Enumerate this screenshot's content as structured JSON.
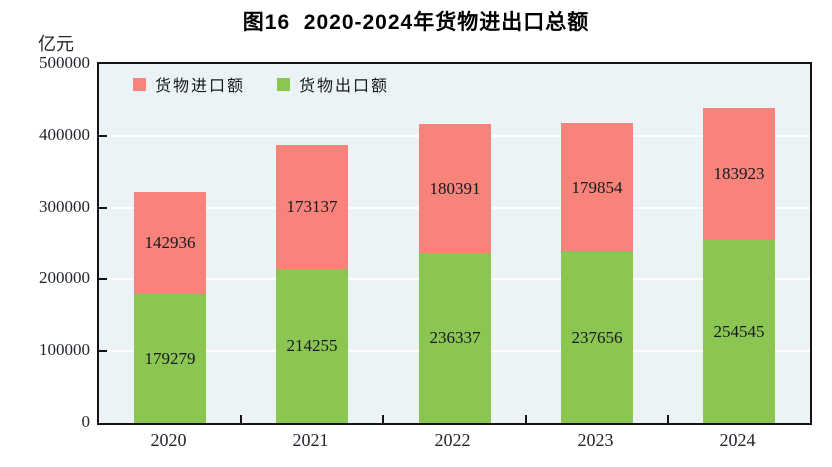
{
  "title": "图16  2020-2024年货物进出口总额",
  "y_unit_label": "亿元",
  "colors": {
    "plot_background": "#EBF3F6",
    "gridline": "#FFFFFF",
    "axis": "#141414",
    "import_red": "#F8837B",
    "export_green": "#8CC652"
  },
  "legend": {
    "items": [
      {
        "label": "货物进口额",
        "color": "#F8837B"
      },
      {
        "label": "货物出口额",
        "color": "#8CC652"
      }
    ]
  },
  "chart_data": {
    "type": "bar",
    "stacked": true,
    "title": "图16  2020-2024年货物进出口总额",
    "ylabel": "亿元",
    "xlabel": "",
    "categories": [
      "2020",
      "2021",
      "2022",
      "2023",
      "2024"
    ],
    "series": [
      {
        "name": "货物进口额",
        "color": "#F8837B",
        "stack_position": "top",
        "values": [
          142936,
          173137,
          180391,
          179854,
          183923
        ]
      },
      {
        "name": "货物出口额",
        "color": "#8CC652",
        "stack_position": "bottom",
        "values": [
          179279,
          214255,
          236337,
          237656,
          254545
        ]
      }
    ],
    "totals": [
      322215,
      387392,
      416728,
      417510,
      438468
    ],
    "ylim": [
      0,
      500000
    ],
    "yticks": [
      0,
      100000,
      200000,
      300000,
      400000,
      500000
    ],
    "grid": true,
    "grid_color": "#FFFFFF",
    "legend_position": "top-left-inside",
    "data_labels": true
  }
}
